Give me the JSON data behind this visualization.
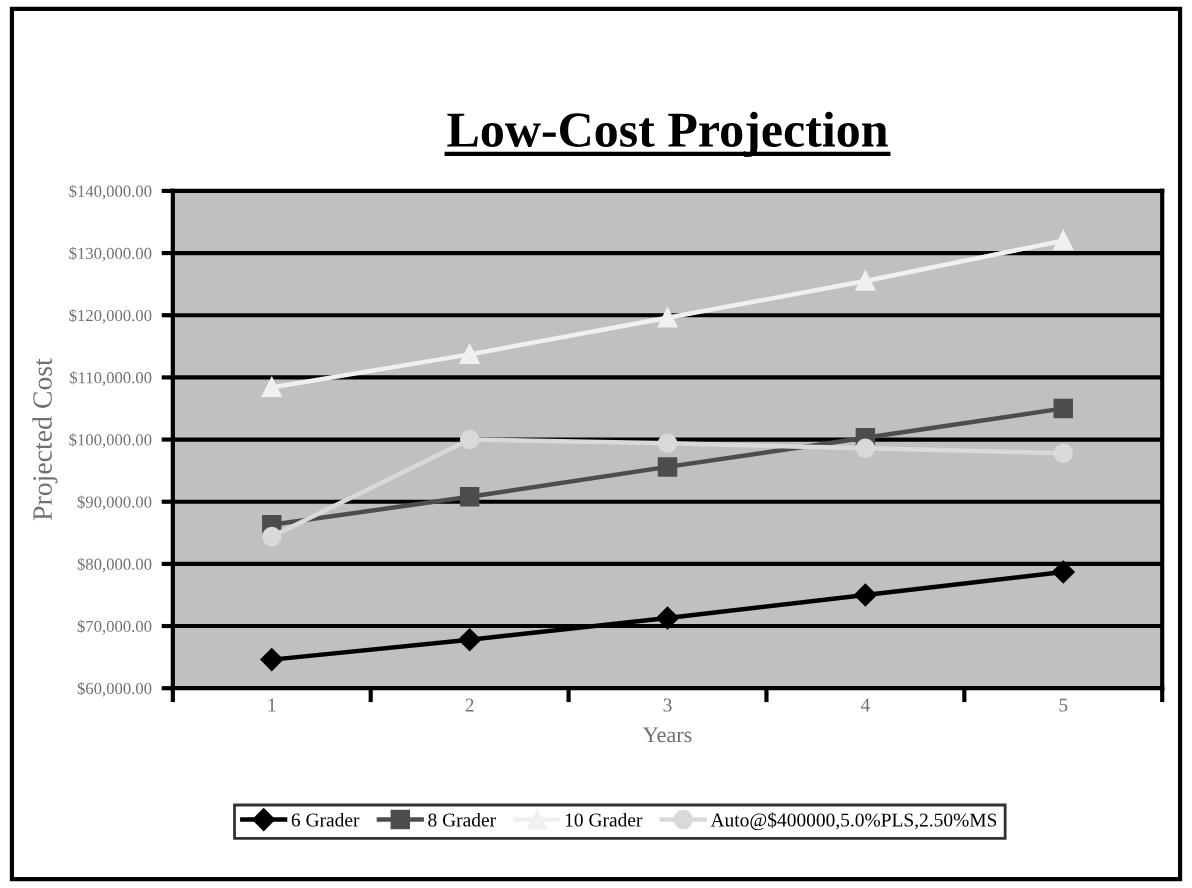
{
  "chart_data": {
    "type": "line",
    "title": "Low-Cost Projection",
    "xlabel": "Years",
    "ylabel": "Projected Cost",
    "categories": [
      "1",
      "2",
      "3",
      "4",
      "5"
    ],
    "series": [
      {
        "name": "6 Grader",
        "color": "#000000",
        "marker": "diamond",
        "values": [
          64600,
          67800,
          71300,
          75000,
          78700
        ]
      },
      {
        "name": "8 Grader",
        "color": "#4d4d4d",
        "marker": "square",
        "values": [
          86300,
          90800,
          95600,
          100300,
          105000
        ]
      },
      {
        "name": "10 Grader",
        "color": "#f0f0f0",
        "marker": "triangle",
        "values": [
          108400,
          113700,
          119600,
          125500,
          132000
        ]
      },
      {
        "name": "Auto@$400000,5.0%PLS,2.50%MS",
        "color": "#d9d9d9",
        "marker": "circle",
        "values": [
          84400,
          100000,
          99400,
          98600,
          97800
        ]
      }
    ],
    "ylim": [
      60000,
      140000
    ],
    "yticks": [
      {
        "value": 60000,
        "label": "$60,000.00"
      },
      {
        "value": 70000,
        "label": "$70,000.00"
      },
      {
        "value": 80000,
        "label": "$80,000.00"
      },
      {
        "value": 90000,
        "label": "$90,000.00"
      },
      {
        "value": 100000,
        "label": "$100,000.00"
      },
      {
        "value": 110000,
        "label": "$110,000.00"
      },
      {
        "value": 120000,
        "label": "$120,000.00"
      },
      {
        "value": 130000,
        "label": "$130,000.00"
      },
      {
        "value": 140000,
        "label": "$140,000.00"
      }
    ],
    "grid": "y",
    "legend": "bottom"
  }
}
